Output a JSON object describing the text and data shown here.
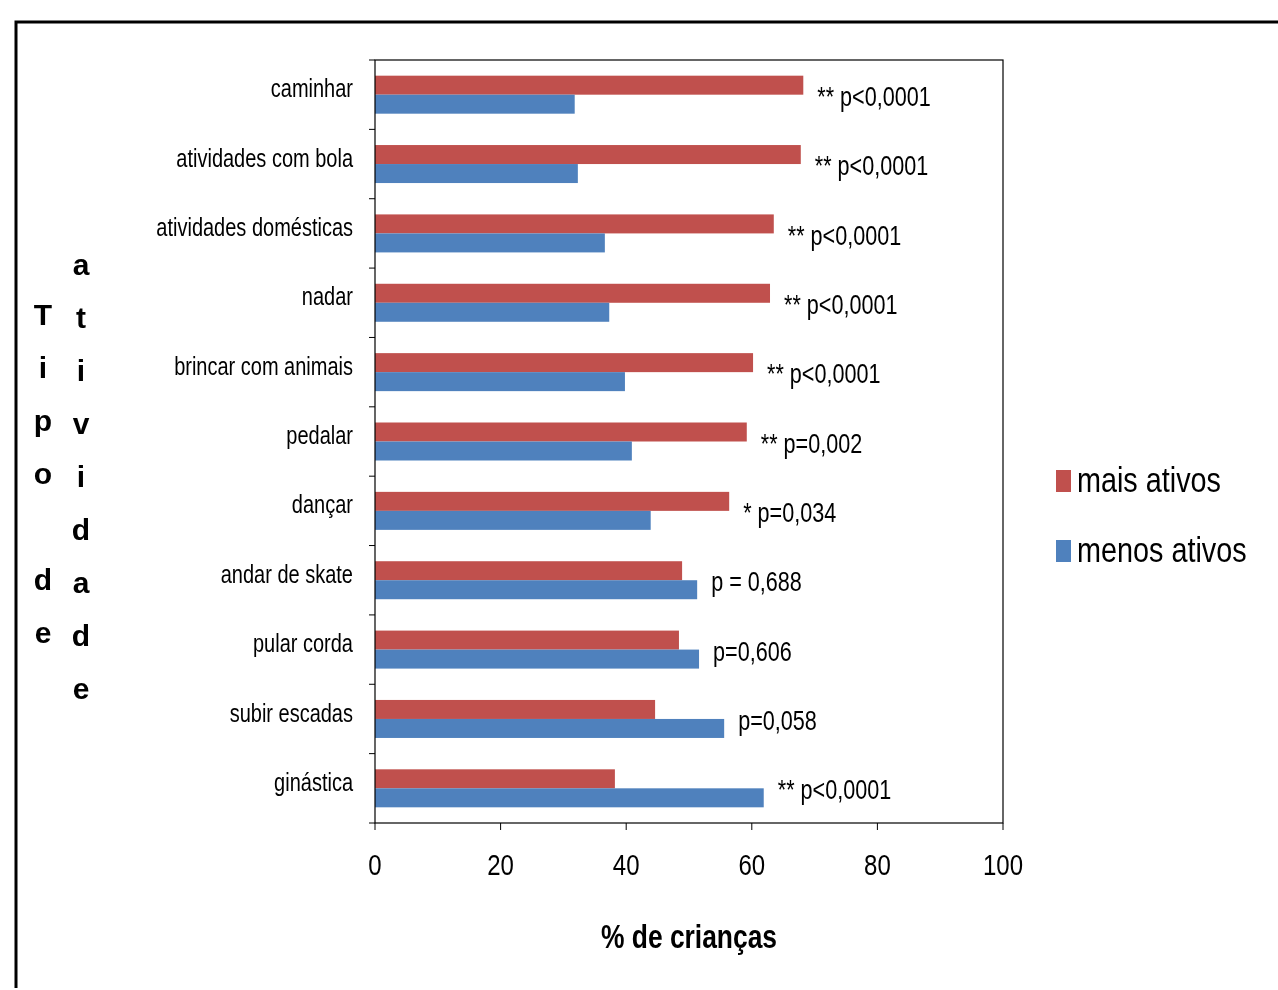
{
  "chart_data": {
    "type": "bar",
    "orientation": "horizontal",
    "xlabel": "% de crianças",
    "ylabel": "Tipo de atividade",
    "categories": [
      "caminhar",
      "atividades com bola",
      "atividades domésticas",
      "nadar",
      "brincar com animais",
      "pedalar",
      "dançar",
      "andar de skate",
      "pular corda",
      "subir escadas",
      "ginástica"
    ],
    "series": [
      {
        "name": "mais ativos",
        "color": "#c0504d",
        "values": [
          68.2,
          67.8,
          63.5,
          62.9,
          60.2,
          59.2,
          56.4,
          48.9,
          48.4,
          44.6,
          38.2
        ]
      },
      {
        "name": "menos ativos",
        "color": "#4f81bd",
        "values": [
          31.8,
          32.3,
          36.6,
          37.3,
          39.8,
          40.9,
          43.9,
          51.3,
          51.6,
          55.6,
          61.9
        ]
      }
    ],
    "xlim": [
      0,
      100
    ],
    "xticks": [
      0,
      20,
      40,
      60,
      80,
      100
    ],
    "legend": "right",
    "grid": false,
    "annotations": [
      "** p<0,0001",
      "** p<0,0001",
      "** p<0,0001",
      "** p<0,0001",
      "** p<0,0001",
      "** p=0,002",
      "* p=0,034",
      "p = 0,688",
      "p=0,606",
      "p=0,058",
      "** p<0,0001"
    ]
  }
}
